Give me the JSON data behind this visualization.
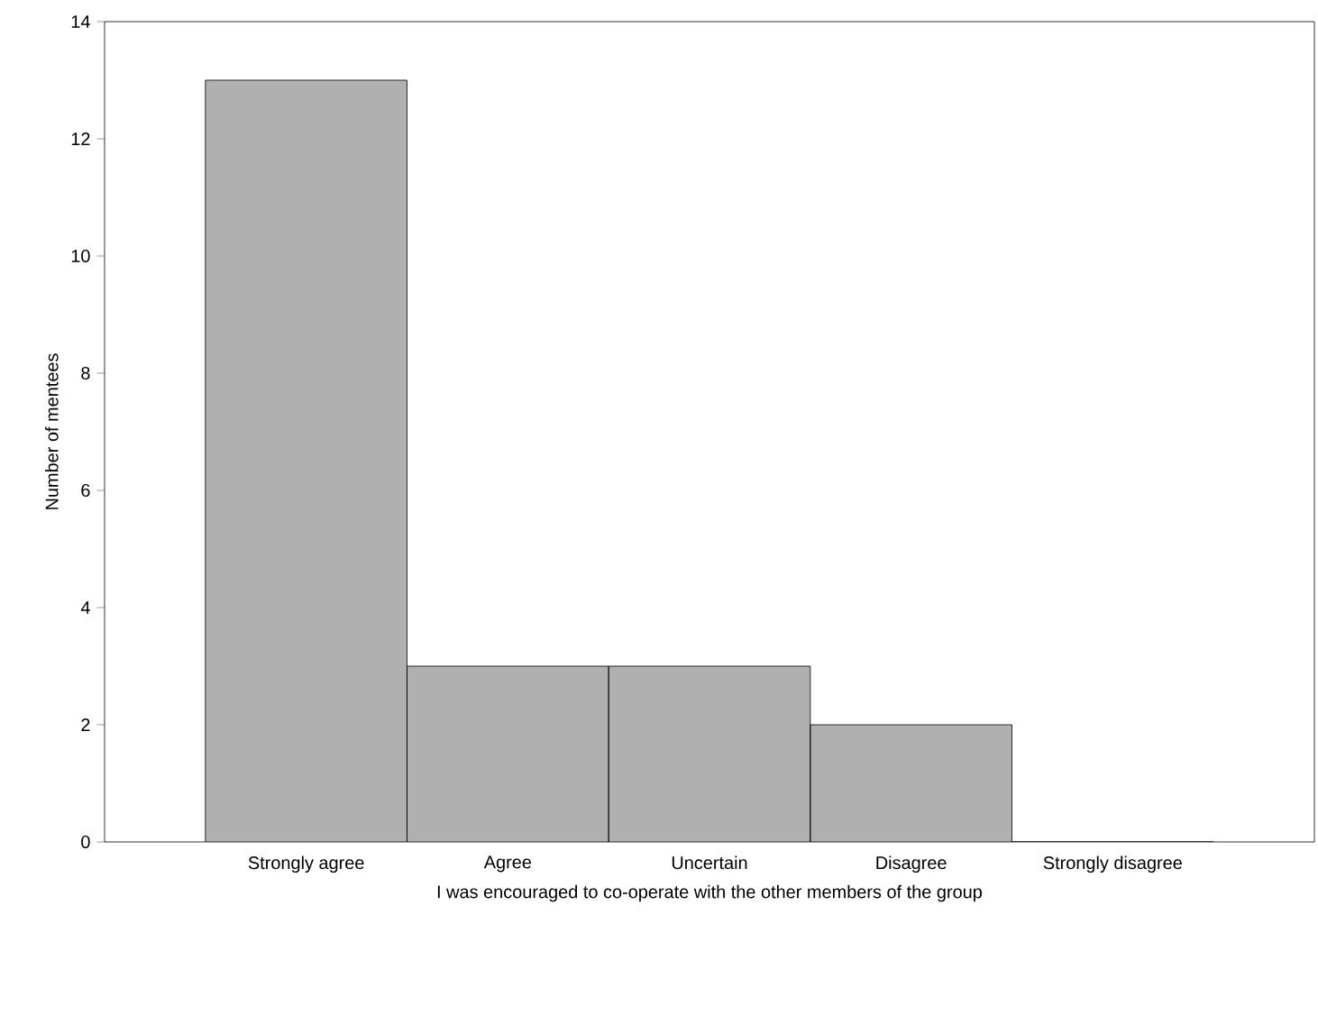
{
  "chart_data": {
    "type": "bar",
    "xlabel": "I was encouraged to co-operate with the other members of the group",
    "ylabel": "Number of mentees",
    "categories": [
      "Strongly agree",
      "Agree",
      "Uncertain",
      "Disagree",
      "Strongly disagree"
    ],
    "values": [
      13,
      3,
      3,
      2,
      0
    ],
    "color": "#b0b0b0",
    "ylim": [
      0,
      14
    ],
    "yticks": [
      0,
      2,
      4,
      6,
      8,
      10,
      12,
      14
    ]
  }
}
